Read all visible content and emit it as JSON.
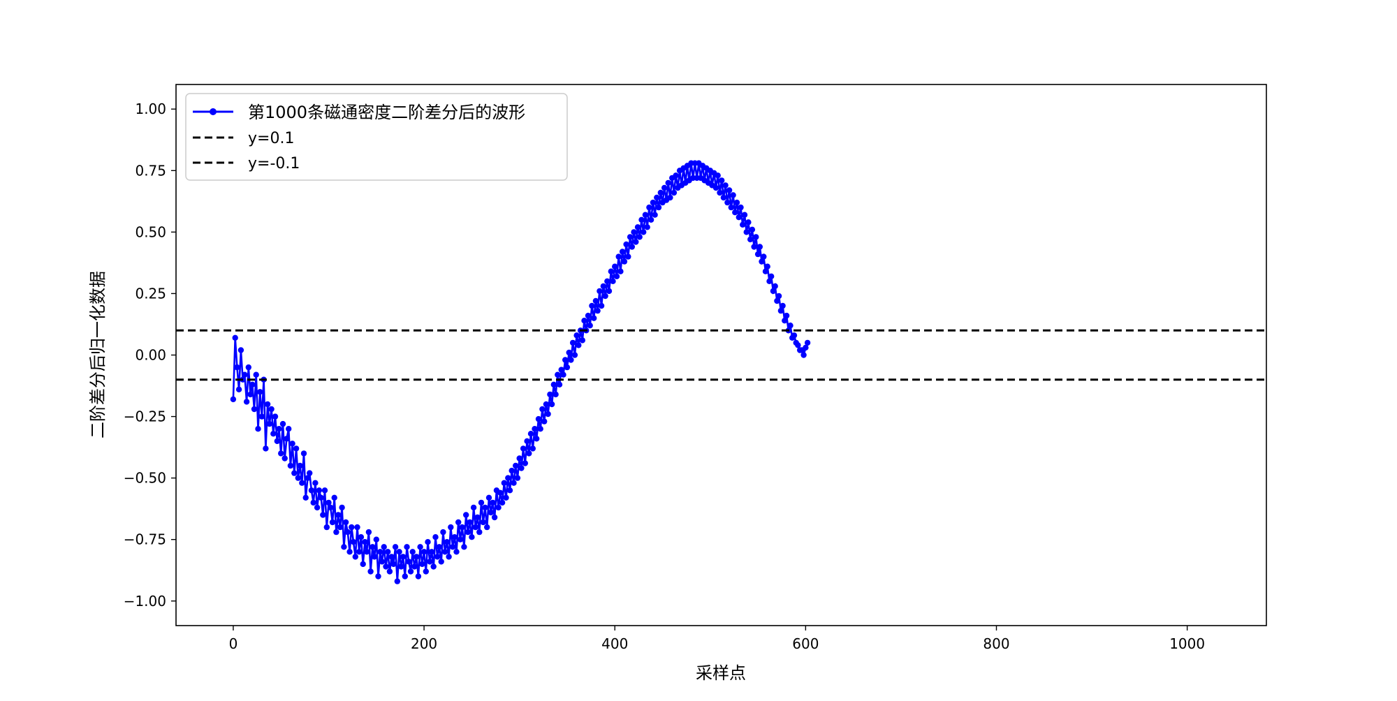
{
  "chart_data": {
    "type": "line",
    "title": "",
    "xlabel": "采样点",
    "ylabel": "二阶差分后归一化数据",
    "xlim": [
      -60,
      1083
    ],
    "ylim": [
      -1.1,
      1.1
    ],
    "xticks": [
      0,
      200,
      400,
      600,
      800,
      1000
    ],
    "yticks": [
      1.0,
      0.75,
      0.5,
      0.25,
      0.0,
      -0.25,
      -0.5,
      -0.75,
      -1.0
    ],
    "xtick_labels": [
      "0",
      "200",
      "400",
      "600",
      "800",
      "1000"
    ],
    "ytick_labels": [
      "1.00",
      "0.75",
      "0.50",
      "0.25",
      "0.00",
      "−0.25",
      "−0.50",
      "−0.75",
      "−1.00"
    ],
    "grid": false,
    "legend_position": "top-left",
    "series": [
      {
        "name": "第1000条磁通密度二阶差分后的波形",
        "color": "#0000ff",
        "marker": "circle",
        "x_start": 0,
        "x_step": 2,
        "values": [
          -0.18,
          0.07,
          -0.05,
          -0.14,
          0.02,
          -0.1,
          -0.08,
          -0.19,
          -0.05,
          -0.16,
          -0.12,
          -0.22,
          -0.08,
          -0.3,
          -0.15,
          -0.25,
          -0.1,
          -0.38,
          -0.2,
          -0.28,
          -0.22,
          -0.32,
          -0.25,
          -0.35,
          -0.3,
          -0.4,
          -0.28,
          -0.42,
          -0.34,
          -0.3,
          -0.45,
          -0.36,
          -0.48,
          -0.38,
          -0.5,
          -0.45,
          -0.52,
          -0.4,
          -0.58,
          -0.5,
          -0.48,
          -0.55,
          -0.6,
          -0.52,
          -0.62,
          -0.55,
          -0.58,
          -0.65,
          -0.55,
          -0.7,
          -0.6,
          -0.62,
          -0.68,
          -0.58,
          -0.72,
          -0.65,
          -0.7,
          -0.62,
          -0.78,
          -0.68,
          -0.72,
          -0.8,
          -0.7,
          -0.76,
          -0.82,
          -0.7,
          -0.8,
          -0.74,
          -0.85,
          -0.76,
          -0.8,
          -0.72,
          -0.88,
          -0.78,
          -0.82,
          -0.75,
          -0.9,
          -0.8,
          -0.84,
          -0.78,
          -0.86,
          -0.8,
          -0.88,
          -0.82,
          -0.85,
          -0.78,
          -0.92,
          -0.8,
          -0.86,
          -0.82,
          -0.9,
          -0.78,
          -0.84,
          -0.88,
          -0.8,
          -0.86,
          -0.82,
          -0.9,
          -0.78,
          -0.85,
          -0.8,
          -0.88,
          -0.76,
          -0.84,
          -0.8,
          -0.86,
          -0.74,
          -0.82,
          -0.78,
          -0.84,
          -0.72,
          -0.8,
          -0.76,
          -0.82,
          -0.7,
          -0.78,
          -0.74,
          -0.8,
          -0.68,
          -0.75,
          -0.7,
          -0.78,
          -0.65,
          -0.72,
          -0.68,
          -0.74,
          -0.62,
          -0.7,
          -0.66,
          -0.72,
          -0.6,
          -0.68,
          -0.62,
          -0.7,
          -0.58,
          -0.64,
          -0.6,
          -0.66,
          -0.55,
          -0.62,
          -0.56,
          -0.6,
          -0.52,
          -0.58,
          -0.5,
          -0.55,
          -0.47,
          -0.52,
          -0.45,
          -0.5,
          -0.42,
          -0.46,
          -0.38,
          -0.44,
          -0.35,
          -0.4,
          -0.32,
          -0.38,
          -0.3,
          -0.34,
          -0.26,
          -0.3,
          -0.22,
          -0.27,
          -0.2,
          -0.24,
          -0.16,
          -0.2,
          -0.12,
          -0.16,
          -0.08,
          -0.12,
          -0.06,
          -0.08,
          -0.02,
          -0.05,
          0.01,
          -0.02,
          0.05,
          0.0,
          0.08,
          0.04,
          0.1,
          0.06,
          0.14,
          0.1,
          0.16,
          0.12,
          0.2,
          0.15,
          0.22,
          0.18,
          0.26,
          0.2,
          0.28,
          0.24,
          0.3,
          0.26,
          0.34,
          0.3,
          0.36,
          0.32,
          0.4,
          0.34,
          0.42,
          0.38,
          0.45,
          0.4,
          0.48,
          0.44,
          0.5,
          0.46,
          0.52,
          0.48,
          0.55,
          0.5,
          0.57,
          0.52,
          0.6,
          0.55,
          0.62,
          0.57,
          0.64,
          0.6,
          0.66,
          0.62,
          0.68,
          0.63,
          0.7,
          0.64,
          0.72,
          0.66,
          0.73,
          0.68,
          0.75,
          0.69,
          0.76,
          0.7,
          0.77,
          0.71,
          0.78,
          0.72,
          0.78,
          0.72,
          0.78,
          0.72,
          0.77,
          0.71,
          0.76,
          0.7,
          0.75,
          0.69,
          0.74,
          0.68,
          0.73,
          0.66,
          0.71,
          0.64,
          0.69,
          0.62,
          0.67,
          0.6,
          0.65,
          0.58,
          0.62,
          0.56,
          0.6,
          0.53,
          0.57,
          0.5,
          0.54,
          0.47,
          0.51,
          0.44,
          0.48,
          0.41,
          0.44,
          0.38,
          0.4,
          0.34,
          0.36,
          0.3,
          0.32,
          0.26,
          0.28,
          0.22,
          0.24,
          0.18,
          0.2,
          0.14,
          0.16,
          0.1,
          0.12,
          0.07,
          0.08,
          0.05,
          0.04,
          0.02,
          0.02,
          0.0,
          0.03,
          0.05
        ]
      },
      {
        "name": "y=0.1",
        "color": "#000000",
        "dashed": true,
        "y": 0.1
      },
      {
        "name": "y=-0.1",
        "color": "#000000",
        "dashed": true,
        "y": -0.1
      }
    ]
  }
}
